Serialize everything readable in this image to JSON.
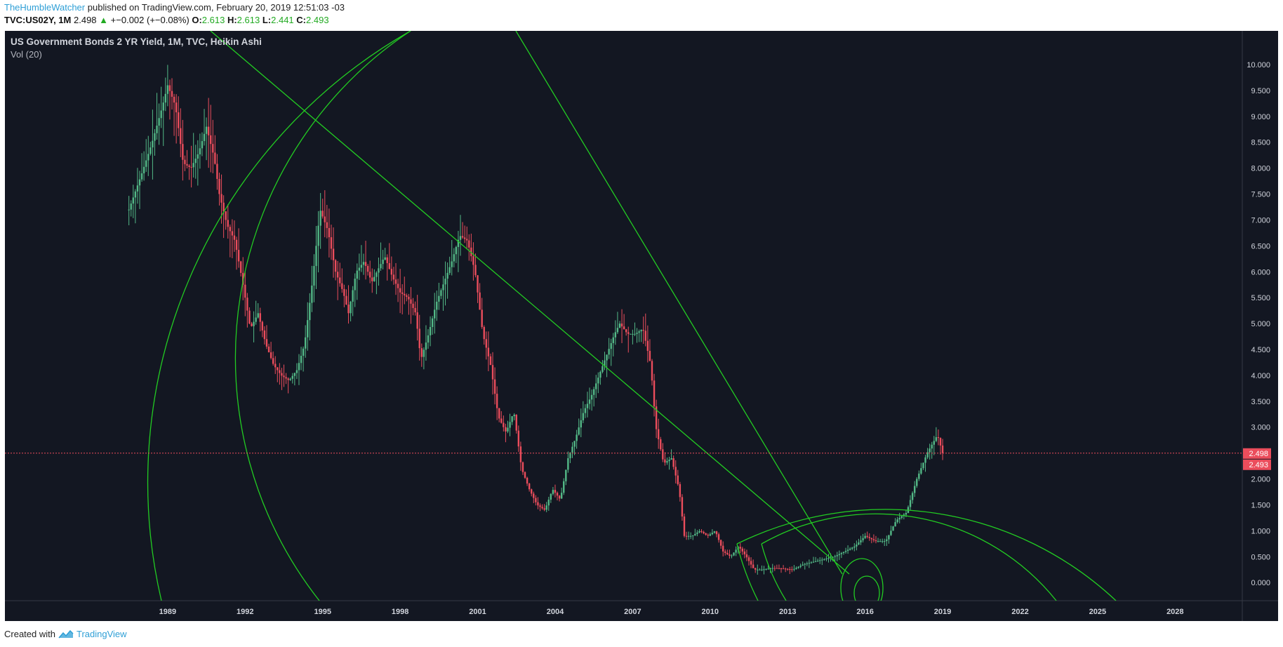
{
  "header": {
    "author": "TheHumbleWatcher",
    "published_text": "published on TradingView.com, February 20, 2019 12:51:03 -03",
    "symbol": "TVC:US02Y, 1M",
    "last": "2.498",
    "change": "+−0.002 (+−0.08%)",
    "o_label": "O:",
    "o_value": "2.613",
    "h_label": "H:",
    "h_value": "2.613",
    "l_label": "L:",
    "l_value": "2.441",
    "c_label": "C:",
    "c_value": "2.493"
  },
  "chart_title": "US Government Bonds 2 YR Yield, 1M, TVC, Heikin Ashi",
  "vol_label": "Vol (20)",
  "footer": {
    "created_with": "Created with",
    "brand": "TradingView"
  },
  "colors": {
    "background": "#131722",
    "up": "#53b987",
    "down": "#eb4d5c",
    "drawing": "#22cc22",
    "axis_text": "#d1d4dc",
    "price_line": "#eb4d5c"
  },
  "chart_data": {
    "type": "candlestick",
    "title": "US Government Bonds 2 YR Yield, 1M, TVC, Heikin Ashi",
    "x_ticks": [
      "1989",
      "1992",
      "1995",
      "1998",
      "2001",
      "2004",
      "2007",
      "2010",
      "2013",
      "2016",
      "2019",
      "2022",
      "2025",
      "2028"
    ],
    "y_ticks": [
      "10.000",
      "9.500",
      "9.000",
      "8.500",
      "8.000",
      "7.500",
      "7.000",
      "6.500",
      "6.000",
      "5.500",
      "5.000",
      "4.500",
      "4.000",
      "3.500",
      "3.000",
      "2.500",
      "2.000",
      "1.500",
      "1.000",
      "0.500",
      "0.000"
    ],
    "x_range": [
      1982.7,
      2030.6
    ],
    "y_range": [
      -0.35,
      10.65
    ],
    "price_labels": [
      {
        "value": 2.498,
        "text": "2.498"
      },
      {
        "value": 2.493,
        "text": "2.493"
      }
    ],
    "series": [
      {
        "points": [
          [
            1987.5,
            7.2
          ],
          [
            1988.0,
            7.9
          ],
          [
            1988.4,
            8.5
          ],
          [
            1988.8,
            9.2
          ],
          [
            1989.0,
            9.6
          ],
          [
            1989.3,
            9.2
          ],
          [
            1989.6,
            8.1
          ],
          [
            1989.9,
            8.0
          ],
          [
            1990.2,
            8.3
          ],
          [
            1990.5,
            8.8
          ],
          [
            1990.8,
            8.2
          ],
          [
            1991.0,
            7.5
          ],
          [
            1991.3,
            6.9
          ],
          [
            1991.6,
            6.6
          ],
          [
            1991.9,
            5.8
          ],
          [
            1992.2,
            4.9
          ],
          [
            1992.5,
            5.2
          ],
          [
            1992.8,
            4.6
          ],
          [
            1993.1,
            4.2
          ],
          [
            1993.4,
            4.0
          ],
          [
            1993.7,
            3.9
          ],
          [
            1994.0,
            4.1
          ],
          [
            1994.3,
            4.6
          ],
          [
            1994.6,
            5.8
          ],
          [
            1994.9,
            7.2
          ],
          [
            1995.2,
            6.8
          ],
          [
            1995.5,
            6.0
          ],
          [
            1995.8,
            5.6
          ],
          [
            1996.0,
            5.2
          ],
          [
            1996.3,
            6.0
          ],
          [
            1996.6,
            6.2
          ],
          [
            1996.9,
            5.8
          ],
          [
            1997.2,
            6.1
          ],
          [
            1997.4,
            6.3
          ],
          [
            1997.7,
            5.9
          ],
          [
            1998.0,
            5.6
          ],
          [
            1998.3,
            5.5
          ],
          [
            1998.6,
            5.2
          ],
          [
            1998.8,
            4.3
          ],
          [
            1999.1,
            4.8
          ],
          [
            1999.4,
            5.4
          ],
          [
            1999.7,
            5.8
          ],
          [
            2000.0,
            6.2
          ],
          [
            2000.3,
            6.7
          ],
          [
            2000.6,
            6.6
          ],
          [
            2000.9,
            6.0
          ],
          [
            2001.2,
            4.8
          ],
          [
            2001.5,
            4.2
          ],
          [
            2001.8,
            3.2
          ],
          [
            2002.1,
            2.9
          ],
          [
            2002.4,
            3.3
          ],
          [
            2002.7,
            2.2
          ],
          [
            2003.0,
            1.8
          ],
          [
            2003.3,
            1.5
          ],
          [
            2003.6,
            1.4
          ],
          [
            2003.9,
            1.8
          ],
          [
            2004.2,
            1.6
          ],
          [
            2004.5,
            2.4
          ],
          [
            2004.8,
            2.8
          ],
          [
            2005.1,
            3.3
          ],
          [
            2005.4,
            3.6
          ],
          [
            2005.7,
            4.0
          ],
          [
            2006.0,
            4.4
          ],
          [
            2006.3,
            4.8
          ],
          [
            2006.5,
            5.0
          ],
          [
            2006.8,
            4.8
          ],
          [
            2007.1,
            4.8
          ],
          [
            2007.4,
            4.9
          ],
          [
            2007.7,
            4.2
          ],
          [
            2007.9,
            3.0
          ],
          [
            2008.2,
            2.3
          ],
          [
            2008.5,
            2.4
          ],
          [
            2008.8,
            1.8
          ],
          [
            2009.0,
            0.9
          ],
          [
            2009.3,
            0.9
          ],
          [
            2009.6,
            1.0
          ],
          [
            2009.9,
            0.9
          ],
          [
            2010.2,
            1.0
          ],
          [
            2010.5,
            0.6
          ],
          [
            2010.8,
            0.5
          ],
          [
            2011.1,
            0.7
          ],
          [
            2011.4,
            0.5
          ],
          [
            2011.7,
            0.25
          ],
          [
            2012.0,
            0.25
          ],
          [
            2012.4,
            0.28
          ],
          [
            2012.8,
            0.27
          ],
          [
            2013.2,
            0.25
          ],
          [
            2013.6,
            0.35
          ],
          [
            2014.0,
            0.4
          ],
          [
            2014.4,
            0.45
          ],
          [
            2014.8,
            0.5
          ],
          [
            2015.2,
            0.6
          ],
          [
            2015.6,
            0.7
          ],
          [
            2016.0,
            0.9
          ],
          [
            2016.4,
            0.8
          ],
          [
            2016.8,
            0.8
          ],
          [
            2017.2,
            1.2
          ],
          [
            2017.6,
            1.35
          ],
          [
            2018.0,
            2.0
          ],
          [
            2018.4,
            2.5
          ],
          [
            2018.8,
            2.85
          ],
          [
            2019.0,
            2.5
          ]
        ]
      }
    ],
    "drawings": "green trend lines and arcs (Fibonacci spiral style)"
  }
}
